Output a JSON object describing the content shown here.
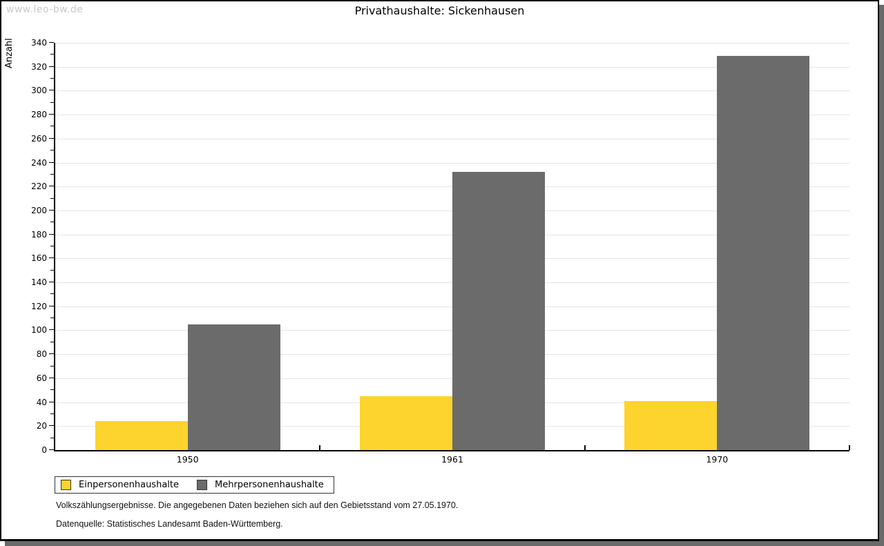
{
  "watermark": "www.leo-bw.de",
  "chart_data": {
    "type": "bar",
    "title": "Privathaushalte: Sickenhausen",
    "xlabel": "",
    "ylabel": "Anzahl",
    "categories": [
      "1950",
      "1961",
      "1970"
    ],
    "series": [
      {
        "name": "Einpersonenhaushalte",
        "color": "#fcd42d",
        "values": [
          24,
          45,
          41
        ]
      },
      {
        "name": "Mehrpersonenhaushalte",
        "color": "#6b6b6b",
        "values": [
          105,
          232,
          329
        ]
      }
    ],
    "ylim": [
      0,
      340
    ],
    "ytick_step": 20,
    "minor_tick_step": 10,
    "grid": "horizontal-major",
    "legend_position": "bottom-left"
  },
  "footnotes": {
    "line1": "Volkszählungsergebnisse. Die angegebenen Daten beziehen sich auf den Gebietsstand vom 27.05.1970.",
    "line2": "Datenquelle: Statistisches Landesamt Baden-Württemberg."
  },
  "colors": {
    "bar_yellow": "#fcd42d",
    "bar_gray": "#6b6b6b",
    "gridline": "#e4e4e4",
    "axis": "#000000",
    "watermark_text": "#c9c9c9",
    "frame_shadow": "#6a6a6a"
  }
}
